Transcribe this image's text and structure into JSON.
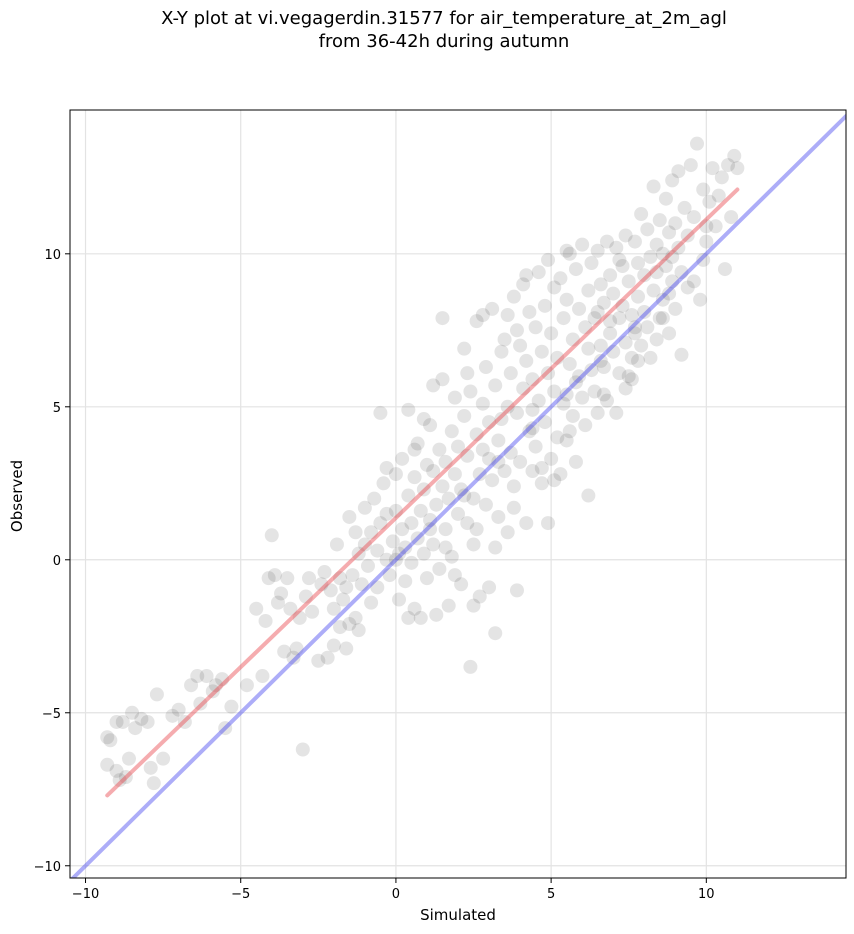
{
  "chart_data": {
    "type": "scatter",
    "title_lines": [
      "X-Y plot at vi.vegagerdin.31577 for air_temperature_at_2m_agl",
      "from 36-42h during autumn"
    ],
    "xlabel": "Simulated",
    "ylabel": "Observed",
    "xlim": [
      -10.5,
      14.5
    ],
    "ylim": [
      -10.4,
      14.7
    ],
    "xticks": [
      -10,
      -5,
      0,
      5,
      10
    ],
    "yticks": [
      -10,
      -5,
      0,
      5,
      10
    ],
    "tick_labels_x": [
      "−10",
      "−5",
      "0",
      "5",
      "10"
    ],
    "tick_labels_y": [
      "−10",
      "−5",
      "0",
      "5",
      "10"
    ],
    "grid": true,
    "colors": {
      "points": "#303030",
      "fit_line": "#e8474d",
      "identity_line": "#4a4af0"
    },
    "lines": [
      {
        "role": "fit",
        "x": [
          -9.3,
          11.0
        ],
        "y": [
          -7.7,
          12.1
        ]
      },
      {
        "role": "identity",
        "x": [
          -10.5,
          14.5
        ],
        "y": [
          -10.5,
          14.5
        ]
      }
    ],
    "points": [
      [
        -9.3,
        -5.8
      ],
      [
        -9.2,
        -5.9
      ],
      [
        -9.3,
        -6.7
      ],
      [
        -9.0,
        -5.3
      ],
      [
        -8.8,
        -5.3
      ],
      [
        -9.0,
        -6.9
      ],
      [
        -8.9,
        -7.2
      ],
      [
        -8.7,
        -7.1
      ],
      [
        -8.6,
        -6.5
      ],
      [
        -8.5,
        -5.0
      ],
      [
        -8.4,
        -5.5
      ],
      [
        -8.2,
        -5.2
      ],
      [
        -8.0,
        -5.3
      ],
      [
        -7.9,
        -6.8
      ],
      [
        -7.8,
        -7.3
      ],
      [
        -7.7,
        -4.4
      ],
      [
        -7.5,
        -6.5
      ],
      [
        -7.2,
        -5.1
      ],
      [
        -7.0,
        -4.9
      ],
      [
        -6.8,
        -5.3
      ],
      [
        -6.6,
        -4.1
      ],
      [
        -6.4,
        -3.8
      ],
      [
        -6.3,
        -4.7
      ],
      [
        -6.1,
        -3.8
      ],
      [
        -5.9,
        -4.3
      ],
      [
        -5.8,
        -4.1
      ],
      [
        -5.6,
        -3.9
      ],
      [
        -5.5,
        -5.5
      ],
      [
        -5.3,
        -4.8
      ],
      [
        -4.8,
        -4.1
      ],
      [
        -4.5,
        -1.6
      ],
      [
        -4.3,
        -3.8
      ],
      [
        -4.2,
        -2.0
      ],
      [
        -4.1,
        -0.6
      ],
      [
        -4.0,
        0.8
      ],
      [
        -3.9,
        -0.5
      ],
      [
        -3.8,
        -1.4
      ],
      [
        -3.7,
        -1.1
      ],
      [
        -3.6,
        -3.0
      ],
      [
        -3.5,
        -0.6
      ],
      [
        -3.4,
        -1.6
      ],
      [
        -3.2,
        -2.9
      ],
      [
        -3.1,
        -1.9
      ],
      [
        -3.0,
        -6.2
      ],
      [
        -2.9,
        -1.2
      ],
      [
        -2.8,
        -0.6
      ],
      [
        -2.7,
        -1.7
      ],
      [
        -2.5,
        -3.3
      ],
      [
        -2.4,
        -0.8
      ],
      [
        -2.3,
        -0.4
      ],
      [
        -2.2,
        -3.2
      ],
      [
        -2.1,
        -1.0
      ],
      [
        -2.0,
        -1.6
      ],
      [
        -1.9,
        0.5
      ],
      [
        -1.8,
        -0.6
      ],
      [
        -1.8,
        -2.2
      ],
      [
        -1.7,
        -1.3
      ],
      [
        -1.6,
        -0.9
      ],
      [
        -1.6,
        -2.9
      ],
      [
        -1.5,
        -2.1
      ],
      [
        -1.5,
        1.4
      ],
      [
        -1.4,
        -0.5
      ],
      [
        -1.3,
        0.9
      ],
      [
        -1.3,
        -1.9
      ],
      [
        -1.2,
        0.2
      ],
      [
        -1.1,
        -0.8
      ],
      [
        -1.0,
        0.5
      ],
      [
        -1.0,
        1.7
      ],
      [
        -0.9,
        -0.2
      ],
      [
        -0.8,
        -1.4
      ],
      [
        -0.8,
        0.9
      ],
      [
        -0.7,
        2.0
      ],
      [
        -0.6,
        0.3
      ],
      [
        -0.6,
        -0.9
      ],
      [
        -0.5,
        1.2
      ],
      [
        -0.5,
        4.8
      ],
      [
        -0.4,
        2.5
      ],
      [
        -0.3,
        0.0
      ],
      [
        -0.3,
        1.5
      ],
      [
        -0.2,
        -0.5
      ],
      [
        -0.1,
        0.6
      ],
      [
        0.0,
        2.8
      ],
      [
        0.0,
        1.6
      ],
      [
        0.1,
        0.2
      ],
      [
        0.1,
        -1.3
      ],
      [
        0.2,
        1.0
      ],
      [
        0.2,
        3.3
      ],
      [
        0.3,
        0.4
      ],
      [
        0.3,
        -0.7
      ],
      [
        0.4,
        2.1
      ],
      [
        0.4,
        4.9
      ],
      [
        0.5,
        1.2
      ],
      [
        0.5,
        -0.1
      ],
      [
        0.6,
        2.7
      ],
      [
        0.6,
        -1.6
      ],
      [
        0.7,
        0.7
      ],
      [
        0.7,
        3.8
      ],
      [
        0.8,
        1.6
      ],
      [
        0.8,
        -1.9
      ],
      [
        0.9,
        0.2
      ],
      [
        0.9,
        2.3
      ],
      [
        1.0,
        3.1
      ],
      [
        1.0,
        -0.6
      ],
      [
        1.1,
        1.3
      ],
      [
        1.1,
        4.4
      ],
      [
        1.2,
        0.5
      ],
      [
        1.2,
        2.9
      ],
      [
        1.3,
        -1.8
      ],
      [
        1.3,
        1.8
      ],
      [
        1.4,
        3.6
      ],
      [
        1.4,
        -0.3
      ],
      [
        1.5,
        2.4
      ],
      [
        1.5,
        5.9
      ],
      [
        1.5,
        7.9
      ],
      [
        1.6,
        1.0
      ],
      [
        1.6,
        3.2
      ],
      [
        1.7,
        -1.5
      ],
      [
        1.7,
        2.0
      ],
      [
        1.8,
        4.2
      ],
      [
        1.8,
        0.1
      ],
      [
        1.9,
        2.8
      ],
      [
        1.9,
        5.3
      ],
      [
        2.0,
        1.5
      ],
      [
        2.0,
        3.7
      ],
      [
        2.1,
        -0.8
      ],
      [
        2.1,
        2.3
      ],
      [
        2.2,
        4.7
      ],
      [
        2.2,
        6.9
      ],
      [
        2.3,
        1.2
      ],
      [
        2.3,
        3.4
      ],
      [
        2.4,
        -3.5
      ],
      [
        2.4,
        5.5
      ],
      [
        2.5,
        2.0
      ],
      [
        2.5,
        0.5
      ],
      [
        2.6,
        4.1
      ],
      [
        2.6,
        7.8
      ],
      [
        2.7,
        2.8
      ],
      [
        2.7,
        -1.2
      ],
      [
        2.8,
        5.1
      ],
      [
        2.8,
        3.6
      ],
      [
        2.9,
        1.8
      ],
      [
        2.9,
        6.3
      ],
      [
        3.0,
        4.5
      ],
      [
        3.0,
        -0.9
      ],
      [
        3.1,
        2.6
      ],
      [
        3.1,
        8.2
      ],
      [
        3.2,
        5.7
      ],
      [
        3.2,
        -2.4
      ],
      [
        3.3,
        3.9
      ],
      [
        3.3,
        1.4
      ],
      [
        3.4,
        6.8
      ],
      [
        3.4,
        4.6
      ],
      [
        3.5,
        2.9
      ],
      [
        3.5,
        7.2
      ],
      [
        3.6,
        5.0
      ],
      [
        3.6,
        0.9
      ],
      [
        3.7,
        3.5
      ],
      [
        3.7,
        6.1
      ],
      [
        3.8,
        8.6
      ],
      [
        3.8,
        2.4
      ],
      [
        3.9,
        4.8
      ],
      [
        3.9,
        -1.0
      ],
      [
        4.0,
        7.0
      ],
      [
        4.0,
        3.2
      ],
      [
        4.1,
        5.6
      ],
      [
        4.1,
        9.0
      ],
      [
        4.2,
        1.2
      ],
      [
        4.2,
        6.5
      ],
      [
        4.3,
        4.2
      ],
      [
        4.3,
        8.1
      ],
      [
        4.4,
        2.9
      ],
      [
        4.4,
        5.9
      ],
      [
        4.5,
        7.6
      ],
      [
        4.5,
        3.7
      ],
      [
        4.6,
        9.4
      ],
      [
        4.6,
        5.2
      ],
      [
        4.7,
        6.8
      ],
      [
        4.7,
        2.5
      ],
      [
        4.8,
        8.3
      ],
      [
        4.8,
        4.5
      ],
      [
        4.9,
        6.1
      ],
      [
        4.9,
        9.8
      ],
      [
        5.0,
        3.3
      ],
      [
        5.0,
        7.4
      ],
      [
        5.1,
        5.5
      ],
      [
        5.1,
        8.9
      ],
      [
        5.2,
        4.0
      ],
      [
        5.2,
        6.6
      ],
      [
        5.3,
        9.2
      ],
      [
        5.3,
        2.8
      ],
      [
        5.4,
        7.9
      ],
      [
        5.4,
        5.1
      ],
      [
        5.5,
        8.5
      ],
      [
        5.5,
        3.9
      ],
      [
        5.6,
        6.4
      ],
      [
        5.6,
        10.0
      ],
      [
        5.7,
        4.7
      ],
      [
        5.7,
        7.2
      ],
      [
        5.8,
        9.5
      ],
      [
        5.8,
        3.2
      ],
      [
        5.9,
        6.0
      ],
      [
        5.9,
        8.2
      ],
      [
        6.0,
        5.3
      ],
      [
        6.0,
        10.3
      ],
      [
        6.1,
        7.6
      ],
      [
        6.1,
        4.4
      ],
      [
        6.2,
        2.1
      ],
      [
        6.2,
        8.8
      ],
      [
        6.3,
        6.2
      ],
      [
        6.3,
        9.7
      ],
      [
        6.4,
        5.5
      ],
      [
        6.4,
        7.9
      ],
      [
        6.5,
        10.1
      ],
      [
        6.5,
        4.8
      ],
      [
        6.6,
        7.0
      ],
      [
        6.6,
        9.0
      ],
      [
        6.7,
        6.3
      ],
      [
        6.7,
        8.4
      ],
      [
        6.8,
        5.2
      ],
      [
        6.8,
        10.4
      ],
      [
        6.9,
        7.4
      ],
      [
        6.9,
        9.3
      ],
      [
        7.0,
        6.8
      ],
      [
        7.0,
        8.7
      ],
      [
        7.1,
        4.8
      ],
      [
        7.1,
        10.2
      ],
      [
        7.2,
        7.9
      ],
      [
        7.2,
        6.1
      ],
      [
        7.3,
        9.6
      ],
      [
        7.3,
        8.3
      ],
      [
        7.4,
        7.1
      ],
      [
        7.4,
        10.6
      ],
      [
        7.5,
        6.0
      ],
      [
        7.5,
        9.1
      ],
      [
        7.6,
        8.0
      ],
      [
        7.6,
        5.9
      ],
      [
        7.7,
        10.4
      ],
      [
        7.7,
        7.4
      ],
      [
        7.8,
        9.7
      ],
      [
        7.8,
        8.6
      ],
      [
        7.9,
        7.0
      ],
      [
        7.9,
        11.3
      ],
      [
        8.0,
        9.3
      ],
      [
        8.0,
        8.1
      ],
      [
        8.1,
        10.8
      ],
      [
        8.1,
        7.6
      ],
      [
        8.2,
        9.9
      ],
      [
        8.2,
        6.6
      ],
      [
        8.3,
        12.2
      ],
      [
        8.3,
        8.8
      ],
      [
        8.4,
        10.3
      ],
      [
        8.4,
        9.4
      ],
      [
        8.5,
        7.9
      ],
      [
        8.5,
        11.1
      ],
      [
        8.6,
        10.0
      ],
      [
        8.6,
        8.5
      ],
      [
        8.7,
        11.8
      ],
      [
        8.7,
        9.6
      ],
      [
        8.8,
        10.7
      ],
      [
        8.8,
        7.4
      ],
      [
        8.9,
        12.4
      ],
      [
        8.9,
        9.1
      ],
      [
        9.0,
        11.0
      ],
      [
        9.0,
        8.2
      ],
      [
        9.1,
        10.2
      ],
      [
        9.1,
        12.7
      ],
      [
        9.2,
        9.4
      ],
      [
        9.2,
        6.7
      ],
      [
        9.3,
        11.5
      ],
      [
        9.4,
        10.6
      ],
      [
        9.5,
        12.9
      ],
      [
        9.6,
        11.2
      ],
      [
        9.7,
        13.6
      ],
      [
        9.8,
        8.5
      ],
      [
        9.9,
        12.1
      ],
      [
        10.0,
        10.4
      ],
      [
        10.1,
        11.7
      ],
      [
        10.2,
        12.8
      ],
      [
        10.3,
        10.9
      ],
      [
        10.4,
        11.9
      ],
      [
        10.5,
        12.5
      ],
      [
        10.6,
        9.5
      ],
      [
        10.7,
        12.9
      ],
      [
        10.8,
        11.2
      ],
      [
        10.9,
        13.2
      ],
      [
        11.0,
        12.8
      ],
      [
        -0.3,
        3.0
      ],
      [
        0.9,
        4.6
      ],
      [
        1.6,
        0.4
      ],
      [
        2.3,
        6.1
      ],
      [
        3.0,
        3.3
      ],
      [
        3.6,
        8.0
      ],
      [
        4.4,
        4.9
      ],
      [
        5.1,
        2.6
      ],
      [
        5.8,
        5.8
      ],
      [
        6.5,
        8.1
      ],
      [
        7.2,
        9.8
      ],
      [
        7.8,
        6.5
      ],
      [
        8.4,
        7.2
      ],
      [
        1.2,
        5.7
      ],
      [
        2.5,
        -1.5
      ],
      [
        3.9,
        7.5
      ],
      [
        4.9,
        1.2
      ],
      [
        6.2,
        6.9
      ],
      [
        0.4,
        -1.9
      ],
      [
        -2.0,
        -2.8
      ],
      [
        -1.2,
        -2.3
      ],
      [
        -3.3,
        -3.2
      ],
      [
        0.6,
        3.6
      ],
      [
        2.8,
        8.0
      ],
      [
        4.2,
        9.3
      ],
      [
        5.5,
        10.1
      ],
      [
        6.9,
        7.8
      ],
      [
        7.4,
        5.6
      ],
      [
        8.9,
        9.9
      ],
      [
        9.4,
        8.9
      ],
      [
        10.0,
        10.9
      ],
      [
        3.2,
        0.4
      ],
      [
        1.9,
        -0.5
      ],
      [
        2.6,
        1.0
      ],
      [
        3.8,
        1.7
      ],
      [
        4.7,
        3.0
      ],
      [
        5.6,
        4.2
      ],
      [
        6.7,
        5.4
      ],
      [
        7.6,
        6.6
      ],
      [
        8.6,
        7.9
      ],
      [
        9.6,
        9.1
      ],
      [
        0.0,
        0.0
      ],
      [
        1.1,
        1.0
      ],
      [
        2.2,
        2.1
      ],
      [
        3.3,
        3.2
      ],
      [
        4.4,
        4.3
      ],
      [
        5.5,
        5.4
      ],
      [
        6.6,
        6.5
      ],
      [
        7.7,
        7.6
      ],
      [
        8.8,
        8.7
      ],
      [
        9.9,
        9.8
      ]
    ]
  }
}
